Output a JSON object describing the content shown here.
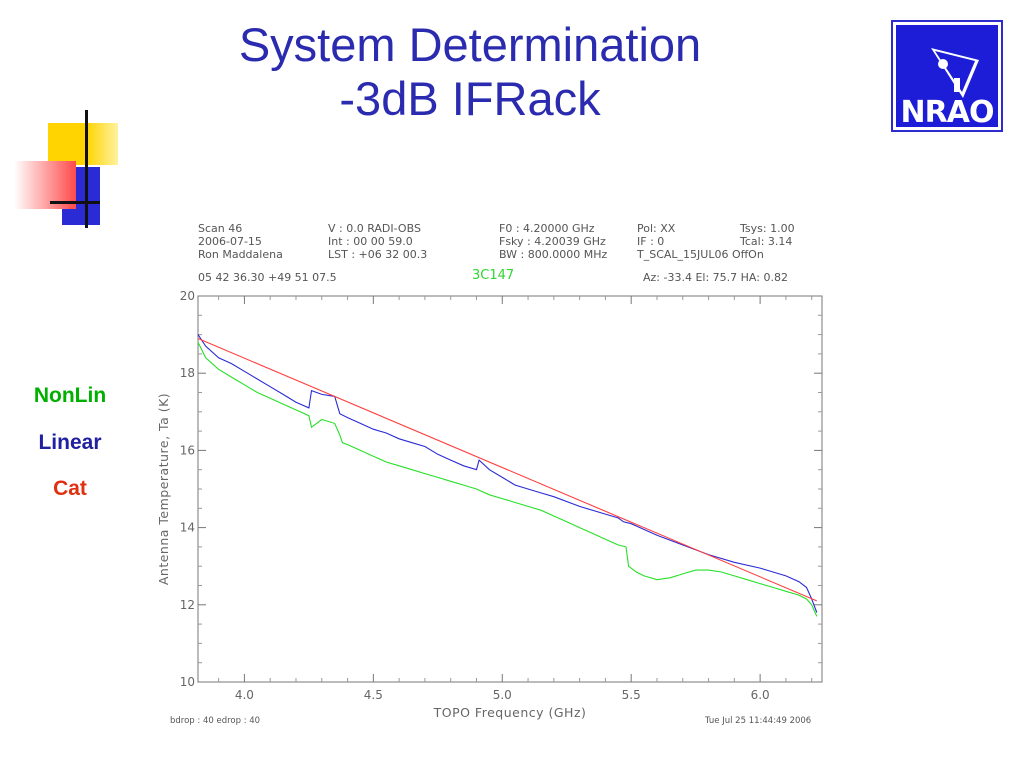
{
  "slide": {
    "title_line1": "System Determination",
    "title_line2": "-3dB IFRack"
  },
  "logo": {
    "name": "NRAO",
    "text": "NRAO",
    "colors": {
      "background": "#1d1dd8",
      "border": "#2c2cd0",
      "foreground": "#ffffff"
    }
  },
  "legend": {
    "items": [
      {
        "label": "NonLin",
        "color": "#00b000"
      },
      {
        "label": "Linear",
        "color": "#2020a0"
      },
      {
        "label": "Cat",
        "color": "#e03010"
      }
    ]
  },
  "header": {
    "col1": [
      "Scan    46",
      "2006-07-15",
      "Ron  Maddalena"
    ],
    "col2": [
      "V    :        0.0  RADI-OBS",
      "Int   :  00  00  59.0",
      "LST  : +06  32  00.3"
    ],
    "col3": [
      "F0    :    4.20000  GHz",
      "Fsky :    4.20039  GHz",
      "BW     : 800.0000  MHz"
    ],
    "col4": [
      "Pol:     XX",
      "IF  :      0",
      "T_SCAL_15JUL06  OffOn"
    ],
    "col5": [
      "Tsys:      1.00",
      "Tcal:      3.14"
    ],
    "coords": "05  42  36.30    +49  51  07.5",
    "source": "3C147",
    "azelha": "Az:  -33.4    El:   75.7    HA:   0.82"
  },
  "footer": {
    "left": "bdrop :    40   edrop :    40",
    "right": "Tue Jul 25 11:44:49 2006"
  },
  "colors": {
    "title": "#2b2bb0",
    "nonlin": "#28e028",
    "linear": "#2b2bd6",
    "cat": "#ff4040",
    "source_label": "#33d433"
  },
  "chart_data": {
    "type": "line",
    "xlabel": "TOPO Frequency (GHz)",
    "ylabel": "Antenna Temperature, Ta (K)",
    "xlim": [
      3.82,
      6.24
    ],
    "ylim": [
      10,
      20
    ],
    "xticks": [
      4.0,
      4.5,
      5.0,
      5.5,
      6.0
    ],
    "xtick_labels": [
      "4.0",
      "4.5",
      "5.0",
      "5.5",
      "6.0"
    ],
    "yticks": [
      10,
      12,
      14,
      16,
      18,
      20
    ],
    "ytick_labels": [
      "10",
      "12",
      "14",
      "16",
      "18",
      "20"
    ],
    "grid": false,
    "series": [
      {
        "name": "NonLin",
        "color": "#28e028",
        "x": [
          3.82,
          3.85,
          3.9,
          3.95,
          4.0,
          4.05,
          4.1,
          4.15,
          4.2,
          4.25,
          4.26,
          4.3,
          4.35,
          4.37,
          4.38,
          4.4,
          4.45,
          4.5,
          4.55,
          4.6,
          4.65,
          4.7,
          4.75,
          4.8,
          4.85,
          4.9,
          4.95,
          5.0,
          5.05,
          5.1,
          5.15,
          5.2,
          5.25,
          5.3,
          5.35,
          5.4,
          5.45,
          5.48,
          5.49,
          5.52,
          5.55,
          5.6,
          5.65,
          5.7,
          5.75,
          5.8,
          5.85,
          5.9,
          5.95,
          6.0,
          6.05,
          6.1,
          6.15,
          6.18,
          6.2,
          6.22
        ],
        "y": [
          18.8,
          18.4,
          18.1,
          17.9,
          17.7,
          17.5,
          17.35,
          17.2,
          17.05,
          16.9,
          16.6,
          16.8,
          16.7,
          16.4,
          16.2,
          16.15,
          16.0,
          15.85,
          15.7,
          15.6,
          15.5,
          15.4,
          15.3,
          15.2,
          15.1,
          15.0,
          14.85,
          14.75,
          14.65,
          14.55,
          14.45,
          14.3,
          14.15,
          14.0,
          13.85,
          13.7,
          13.55,
          13.5,
          13.0,
          12.85,
          12.75,
          12.65,
          12.7,
          12.8,
          12.9,
          12.9,
          12.85,
          12.75,
          12.65,
          12.55,
          12.45,
          12.35,
          12.25,
          12.15,
          12.0,
          11.7
        ]
      },
      {
        "name": "Linear",
        "color": "#2b2bd6",
        "x": [
          3.82,
          3.85,
          3.9,
          3.95,
          4.0,
          4.05,
          4.1,
          4.15,
          4.2,
          4.25,
          4.26,
          4.3,
          4.35,
          4.37,
          4.4,
          4.45,
          4.5,
          4.55,
          4.6,
          4.65,
          4.7,
          4.75,
          4.8,
          4.85,
          4.9,
          4.91,
          4.95,
          5.0,
          5.05,
          5.1,
          5.15,
          5.2,
          5.3,
          5.4,
          5.45,
          5.47,
          5.5,
          5.55,
          5.6,
          5.7,
          5.8,
          5.9,
          6.0,
          6.05,
          6.1,
          6.15,
          6.18,
          6.2,
          6.22
        ],
        "y": [
          19.0,
          18.7,
          18.4,
          18.25,
          18.05,
          17.85,
          17.65,
          17.45,
          17.25,
          17.1,
          17.55,
          17.45,
          17.4,
          16.95,
          16.85,
          16.7,
          16.55,
          16.45,
          16.3,
          16.2,
          16.1,
          15.9,
          15.75,
          15.6,
          15.5,
          15.75,
          15.5,
          15.3,
          15.1,
          15.0,
          14.9,
          14.8,
          14.55,
          14.35,
          14.25,
          14.15,
          14.1,
          13.95,
          13.8,
          13.55,
          13.3,
          13.1,
          12.95,
          12.85,
          12.75,
          12.6,
          12.45,
          12.15,
          11.8
        ]
      },
      {
        "name": "Cat",
        "color": "#ff4040",
        "x": [
          3.82,
          6.22
        ],
        "y": [
          18.9,
          12.1
        ]
      }
    ]
  }
}
